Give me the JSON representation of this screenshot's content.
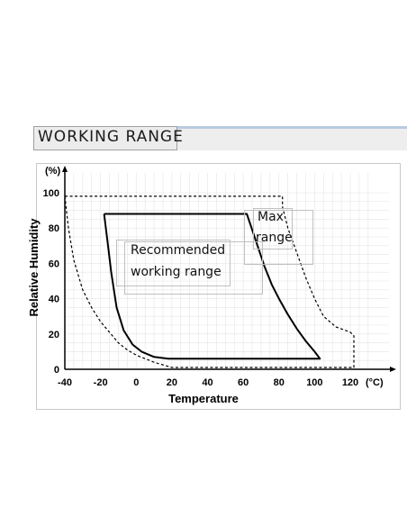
{
  "header": {
    "title": "WORKING RANGE"
  },
  "chart_data": {
    "type": "line",
    "xlabel": "Temperature",
    "ylabel": "Relative Humidity",
    "x_unit": "(°C)",
    "y_unit": "(%)",
    "xlim": [
      -40,
      130
    ],
    "ylim": [
      0,
      102
    ],
    "xticks": [
      "-40",
      "-20",
      "0",
      "20",
      "40",
      "60",
      "80",
      "100",
      "120"
    ],
    "yticks": [
      "0",
      "20",
      "40",
      "60",
      "80",
      "100"
    ],
    "grid": true,
    "series": [
      {
        "name": "Recommended working range",
        "style": "solid",
        "color": "#000000",
        "x": [
          -18,
          62,
          64,
          68,
          72,
          76,
          80,
          85,
          90,
          95,
          100,
          103,
          18,
          10,
          3,
          -2,
          -7,
          -11,
          -14,
          -16,
          -18
        ],
        "y": [
          88,
          88,
          82,
          70,
          58,
          48,
          40,
          31,
          23,
          16,
          10,
          6,
          6,
          7,
          10,
          14,
          22,
          35,
          55,
          72,
          88
        ]
      },
      {
        "name": "Max range",
        "style": "dashed",
        "color": "#000000",
        "x": [
          -40,
          -38,
          -35,
          -30,
          -25,
          -20,
          -15,
          -10,
          -5,
          0,
          10,
          20,
          122,
          122,
          120,
          112,
          105,
          100,
          95,
          90,
          85,
          82,
          82,
          -40
        ],
        "y": [
          98,
          80,
          62,
          45,
          35,
          27,
          21,
          15,
          11,
          8,
          4,
          1,
          1,
          19,
          21,
          24,
          30,
          40,
          52,
          66,
          80,
          92,
          98,
          98
        ]
      }
    ],
    "annotations": [
      {
        "text": "Recommended working range",
        "lines": [
          "Recommended",
          "working range"
        ]
      },
      {
        "text": "Max range",
        "lines": [
          "Max",
          "range"
        ]
      }
    ]
  }
}
